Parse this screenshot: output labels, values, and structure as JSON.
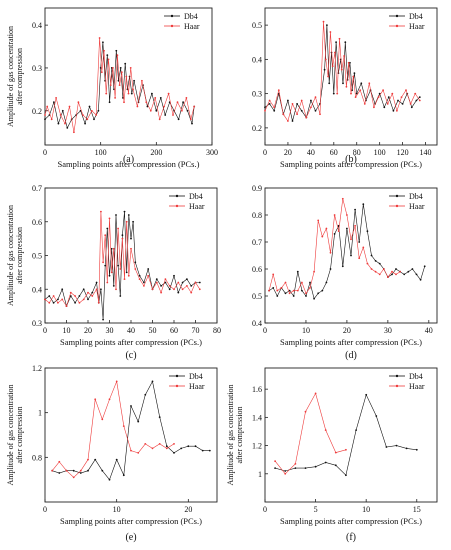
{
  "chart_data": [
    {
      "id": "a",
      "type": "line",
      "caption": "(a)",
      "xlabel": "Sampling points after compression (PCs.)",
      "ylabel": [
        "Amplitude of gas concentration",
        "after compression"
      ],
      "xlim": [
        0,
        300
      ],
      "ylim": [
        0.12,
        0.44
      ],
      "xticks": [
        0,
        100,
        200,
        300
      ],
      "yticks": [
        0.2,
        0.3,
        0.4
      ],
      "legend_position": "top-right",
      "series": [
        {
          "name": "Db4",
          "color": "#111111",
          "x": [
            0,
            8,
            16,
            24,
            32,
            40,
            48,
            56,
            64,
            72,
            80,
            88,
            96,
            100,
            104,
            108,
            112,
            116,
            120,
            124,
            128,
            132,
            136,
            140,
            144,
            148,
            152,
            156,
            160,
            168,
            176,
            184,
            192,
            200,
            208,
            216,
            224,
            232,
            240,
            248,
            256,
            264,
            268
          ],
          "y": [
            0.18,
            0.19,
            0.22,
            0.17,
            0.2,
            0.16,
            0.18,
            0.19,
            0.2,
            0.17,
            0.21,
            0.18,
            0.2,
            0.3,
            0.36,
            0.27,
            0.33,
            0.22,
            0.3,
            0.25,
            0.34,
            0.27,
            0.3,
            0.23,
            0.31,
            0.25,
            0.28,
            0.24,
            0.27,
            0.22,
            0.26,
            0.21,
            0.24,
            0.2,
            0.23,
            0.19,
            0.22,
            0.2,
            0.18,
            0.22,
            0.2,
            0.17,
            0.21
          ]
        },
        {
          "name": "Haar",
          "color": "#ee3b3b",
          "x": [
            0,
            4,
            12,
            20,
            28,
            36,
            44,
            52,
            60,
            68,
            76,
            84,
            92,
            98,
            102,
            106,
            110,
            114,
            118,
            122,
            126,
            130,
            134,
            138,
            142,
            146,
            150,
            154,
            158,
            166,
            174,
            182,
            190,
            198,
            206,
            214,
            222,
            230,
            238,
            246,
            254,
            262,
            268
          ],
          "y": [
            0.19,
            0.21,
            0.18,
            0.23,
            0.19,
            0.17,
            0.21,
            0.15,
            0.22,
            0.19,
            0.18,
            0.2,
            0.19,
            0.37,
            0.29,
            0.34,
            0.24,
            0.32,
            0.26,
            0.3,
            0.23,
            0.33,
            0.26,
            0.29,
            0.22,
            0.28,
            0.24,
            0.3,
            0.25,
            0.21,
            0.27,
            0.22,
            0.2,
            0.23,
            0.18,
            0.21,
            0.24,
            0.19,
            0.22,
            0.2,
            0.23,
            0.18,
            0.21
          ]
        }
      ]
    },
    {
      "id": "b",
      "type": "line",
      "caption": "(b)",
      "xlabel": "Sampling points after compression (PCs.)",
      "ylabel": "",
      "xlim": [
        0,
        150
      ],
      "ylim": [
        0.15,
        0.55
      ],
      "xticks": [
        0,
        20,
        40,
        60,
        80,
        100,
        120,
        140
      ],
      "yticks": [
        0.2,
        0.3,
        0.4,
        0.5
      ],
      "legend_position": "top-right",
      "series": [
        {
          "name": "Db4",
          "color": "#111111",
          "x": [
            0,
            4,
            8,
            12,
            16,
            20,
            24,
            28,
            32,
            36,
            40,
            44,
            48,
            52,
            54,
            56,
            58,
            60,
            62,
            64,
            66,
            68,
            70,
            72,
            74,
            76,
            78,
            80,
            84,
            88,
            92,
            96,
            100,
            104,
            108,
            112,
            116,
            120,
            124,
            128,
            132,
            135
          ],
          "y": [
            0.26,
            0.27,
            0.25,
            0.3,
            0.24,
            0.28,
            0.22,
            0.27,
            0.25,
            0.23,
            0.28,
            0.25,
            0.27,
            0.37,
            0.5,
            0.33,
            0.42,
            0.3,
            0.45,
            0.36,
            0.4,
            0.33,
            0.45,
            0.34,
            0.39,
            0.31,
            0.36,
            0.3,
            0.33,
            0.28,
            0.31,
            0.27,
            0.3,
            0.26,
            0.29,
            0.25,
            0.28,
            0.27,
            0.3,
            0.26,
            0.28,
            0.29
          ]
        },
        {
          "name": "Haar",
          "color": "#ee3b3b",
          "x": [
            0,
            4,
            8,
            12,
            16,
            20,
            24,
            28,
            32,
            36,
            40,
            44,
            48,
            51,
            53,
            55,
            57,
            59,
            61,
            63,
            65,
            67,
            69,
            71,
            73,
            75,
            77,
            79,
            83,
            87,
            91,
            95,
            99,
            103,
            107,
            111,
            115,
            119,
            123,
            127,
            131,
            135
          ],
          "y": [
            0.25,
            0.28,
            0.26,
            0.31,
            0.24,
            0.22,
            0.27,
            0.24,
            0.28,
            0.23,
            0.26,
            0.29,
            0.24,
            0.51,
            0.4,
            0.35,
            0.48,
            0.38,
            0.42,
            0.3,
            0.46,
            0.37,
            0.41,
            0.32,
            0.39,
            0.3,
            0.35,
            0.29,
            0.31,
            0.27,
            0.33,
            0.26,
            0.29,
            0.31,
            0.27,
            0.3,
            0.25,
            0.29,
            0.31,
            0.27,
            0.3,
            0.28
          ]
        }
      ]
    },
    {
      "id": "c",
      "type": "line",
      "caption": "(c)",
      "xlabel": "Sampling points after compression (PCs.)",
      "ylabel": [
        "Amplitude of gas concentration",
        "after compression"
      ],
      "xlim": [
        0,
        80
      ],
      "ylim": [
        0.3,
        0.7
      ],
      "xticks": [
        0,
        10,
        20,
        30,
        40,
        50,
        60,
        70,
        80
      ],
      "yticks": [
        0.3,
        0.4,
        0.5,
        0.6,
        0.7
      ],
      "legend_position": "top-right",
      "series": [
        {
          "name": "Db4",
          "color": "#111111",
          "x": [
            0,
            2,
            4,
            6,
            8,
            10,
            12,
            14,
            16,
            18,
            20,
            22,
            24,
            25,
            26,
            27,
            28,
            29,
            30,
            31,
            32,
            33,
            34,
            35,
            36,
            37,
            38,
            39,
            40,
            41,
            42,
            44,
            46,
            48,
            50,
            52,
            54,
            56,
            58,
            60,
            62,
            64,
            66,
            68,
            70,
            72
          ],
          "y": [
            0.37,
            0.38,
            0.36,
            0.37,
            0.4,
            0.35,
            0.38,
            0.36,
            0.38,
            0.4,
            0.37,
            0.39,
            0.42,
            0.36,
            0.4,
            0.31,
            0.47,
            0.58,
            0.44,
            0.52,
            0.41,
            0.62,
            0.47,
            0.38,
            0.56,
            0.63,
            0.45,
            0.62,
            0.55,
            0.6,
            0.48,
            0.44,
            0.42,
            0.46,
            0.4,
            0.43,
            0.41,
            0.42,
            0.4,
            0.44,
            0.39,
            0.42,
            0.43,
            0.41,
            0.42,
            0.42
          ]
        },
        {
          "name": "Haar",
          "color": "#ee3b3b",
          "x": [
            0,
            2,
            4,
            6,
            8,
            10,
            12,
            14,
            16,
            18,
            20,
            22,
            24,
            25,
            26,
            27,
            28,
            29,
            30,
            31,
            32,
            33,
            34,
            35,
            36,
            37,
            38,
            39,
            40,
            42,
            44,
            46,
            48,
            50,
            52,
            54,
            56,
            58,
            60,
            62,
            64,
            66,
            68,
            70,
            72
          ],
          "y": [
            0.37,
            0.36,
            0.38,
            0.36,
            0.37,
            0.35,
            0.39,
            0.38,
            0.36,
            0.37,
            0.39,
            0.38,
            0.4,
            0.36,
            0.63,
            0.48,
            0.56,
            0.42,
            0.61,
            0.45,
            0.52,
            0.4,
            0.58,
            0.46,
            0.55,
            0.43,
            0.6,
            0.44,
            0.52,
            0.46,
            0.43,
            0.41,
            0.44,
            0.4,
            0.42,
            0.39,
            0.43,
            0.41,
            0.4,
            0.42,
            0.4,
            0.41,
            0.39,
            0.42,
            0.4
          ]
        }
      ]
    },
    {
      "id": "d",
      "type": "line",
      "caption": "(d)",
      "xlabel": "Sampling points after compression (PCs.)",
      "ylabel": "",
      "xlim": [
        0,
        42
      ],
      "ylim": [
        0.4,
        0.9
      ],
      "xticks": [
        0,
        10,
        20,
        30,
        40
      ],
      "yticks": [
        0.4,
        0.5,
        0.6,
        0.7,
        0.8,
        0.9
      ],
      "legend_position": "top-right",
      "series": [
        {
          "name": "Db4",
          "color": "#111111",
          "x": [
            1,
            2,
            3,
            4,
            5,
            6,
            7,
            8,
            9,
            10,
            11,
            12,
            13,
            14,
            15,
            16,
            17,
            18,
            19,
            20,
            21,
            22,
            23,
            24,
            25,
            26,
            27,
            28,
            29,
            30,
            31,
            32,
            33,
            34,
            35,
            36,
            37,
            38,
            39
          ],
          "y": [
            0.52,
            0.53,
            0.5,
            0.53,
            0.51,
            0.52,
            0.5,
            0.59,
            0.52,
            0.5,
            0.55,
            0.49,
            0.51,
            0.52,
            0.55,
            0.6,
            0.73,
            0.76,
            0.61,
            0.75,
            0.65,
            0.82,
            0.7,
            0.84,
            0.74,
            0.65,
            0.63,
            0.62,
            0.6,
            0.57,
            0.58,
            0.6,
            0.59,
            0.58,
            0.59,
            0.6,
            0.58,
            0.56,
            0.61
          ]
        },
        {
          "name": "Haar",
          "color": "#ee3b3b",
          "x": [
            1,
            2,
            3,
            4,
            5,
            6,
            7,
            8,
            9,
            10,
            11,
            12,
            13,
            14,
            15,
            16,
            17,
            18,
            19,
            20,
            21,
            22,
            23,
            24,
            25,
            26,
            27,
            28,
            29,
            30,
            31,
            32,
            33
          ],
          "y": [
            0.52,
            0.58,
            0.52,
            0.53,
            0.55,
            0.51,
            0.52,
            0.52,
            0.55,
            0.51,
            0.53,
            0.59,
            0.78,
            0.72,
            0.75,
            0.66,
            0.8,
            0.74,
            0.86,
            0.8,
            0.71,
            0.76,
            0.64,
            0.68,
            0.62,
            0.6,
            0.59,
            0.58,
            0.6,
            0.57,
            0.59,
            0.58,
            0.59
          ]
        }
      ]
    },
    {
      "id": "e",
      "type": "line",
      "caption": "(e)",
      "xlabel": "Sampling points after compression (PCs.)",
      "ylabel": [
        "Amplitude of gas concentration",
        "after compression"
      ],
      "xlim": [
        0,
        24
      ],
      "ylim": [
        0.6,
        1.2
      ],
      "xticks": [
        0,
        10,
        20
      ],
      "yticks": [
        0.8,
        1.0,
        1.2
      ],
      "legend_position": "top-right",
      "series": [
        {
          "name": "Db4",
          "color": "#111111",
          "x": [
            1,
            2,
            3,
            4,
            5,
            6,
            7,
            8,
            9,
            10,
            11,
            12,
            13,
            14,
            15,
            16,
            17,
            18,
            19,
            20,
            21,
            22,
            23
          ],
          "y": [
            0.74,
            0.73,
            0.74,
            0.74,
            0.73,
            0.74,
            0.79,
            0.74,
            0.7,
            0.79,
            0.72,
            1.03,
            0.96,
            1.08,
            1.14,
            0.98,
            0.85,
            0.82,
            0.84,
            0.85,
            0.85,
            0.83,
            0.83
          ]
        },
        {
          "name": "Haar",
          "color": "#ee3b3b",
          "x": [
            1,
            2,
            3,
            4,
            5,
            6,
            7,
            8,
            9,
            10,
            11,
            12,
            13,
            14,
            15,
            16,
            17,
            18
          ],
          "y": [
            0.74,
            0.78,
            0.74,
            0.71,
            0.74,
            0.79,
            1.06,
            0.97,
            1.06,
            1.14,
            0.94,
            0.83,
            0.82,
            0.86,
            0.84,
            0.86,
            0.84,
            0.86
          ]
        }
      ]
    },
    {
      "id": "f",
      "type": "line",
      "caption": "(f)",
      "xlabel": "Sampling points after compression (PCs.)",
      "ylabel": [
        "Amplitude of gas concentration",
        "after compression"
      ],
      "xlim": [
        0,
        17
      ],
      "ylim": [
        0.8,
        1.75
      ],
      "xticks": [
        0,
        5,
        10,
        15
      ],
      "yticks": [
        1.0,
        1.2,
        1.4,
        1.6
      ],
      "legend_position": "top-right",
      "series": [
        {
          "name": "Db4",
          "color": "#111111",
          "x": [
            1,
            2,
            3,
            4,
            5,
            6,
            7,
            8,
            9,
            10,
            11,
            12,
            13,
            14,
            15
          ],
          "y": [
            1.04,
            1.02,
            1.04,
            1.04,
            1.05,
            1.08,
            1.06,
            0.99,
            1.31,
            1.56,
            1.41,
            1.19,
            1.2,
            1.18,
            1.17
          ]
        },
        {
          "name": "Haar",
          "color": "#ee3b3b",
          "x": [
            1,
            2,
            3,
            4,
            5,
            6,
            7,
            8
          ],
          "y": [
            1.09,
            1.0,
            1.07,
            1.44,
            1.57,
            1.31,
            1.15,
            1.17
          ]
        }
      ]
    }
  ]
}
